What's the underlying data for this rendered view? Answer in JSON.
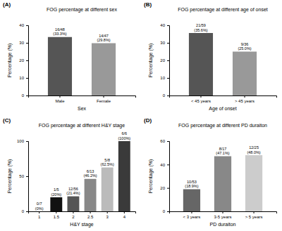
{
  "chart_data": [
    {
      "type": "bar",
      "panel": "(A)",
      "title": "FOG percentage at different sex",
      "x_label": "Sex",
      "y_label": "Percentage (%)",
      "categories": [
        "Male",
        "Female"
      ],
      "values": [
        33.3,
        29.8
      ],
      "counts": [
        "16/48",
        "14/47"
      ],
      "value_labels": [
        "(33.3%)",
        "(29.8%)"
      ],
      "colors": [
        "#555555",
        "#999999"
      ],
      "ylim": [
        0,
        40
      ],
      "yticks": [
        0,
        10,
        20,
        30,
        40
      ],
      "data_labels": true
    },
    {
      "type": "bar",
      "panel": "(B)",
      "title": "FOG percentage at different age of onset",
      "x_label": "Age of onset",
      "y_label": "Percentage (%)",
      "categories": [
        "< 45 years",
        "> 45 years"
      ],
      "values": [
        35.6,
        25.0
      ],
      "counts": [
        "21/59",
        "9/36"
      ],
      "value_labels": [
        "(35.6%)",
        "(25.0%)"
      ],
      "colors": [
        "#555555",
        "#999999"
      ],
      "ylim": [
        0,
        40
      ],
      "yticks": [
        0,
        10,
        20,
        30,
        40
      ],
      "data_labels": true
    },
    {
      "type": "bar",
      "panel": "(C)",
      "title": "FOG percentage at different H&Y stage",
      "x_label": "H&Y stage",
      "y_label": "Percentage (%)",
      "categories": [
        "1",
        "1.5",
        "2",
        "2.5",
        "3",
        "4"
      ],
      "values": [
        0,
        20,
        21.4,
        46.2,
        62.5,
        100
      ],
      "counts": [
        "0/7",
        "1/5",
        "12/56",
        "6/13",
        "5/8",
        "6/6"
      ],
      "value_labels": [
        "(0%)",
        "(20%)",
        "(21.4%)",
        "(46.2%)",
        "(62.5%)",
        "(100%)"
      ],
      "colors": [
        "#000000",
        "#111111",
        "#555555",
        "#888888",
        "#bbbbbb",
        "#3a3a3a"
      ],
      "ylim": [
        0,
        100
      ],
      "yticks": [
        0,
        50,
        100
      ],
      "data_labels": true
    },
    {
      "type": "bar",
      "panel": "(D)",
      "title": "FOG percentage at different PD duraiton",
      "x_label": "PD duraiton",
      "y_label": "Percentage (%)",
      "categories": [
        "< 3 years",
        "3-5 years",
        "> 5 years"
      ],
      "values": [
        18.9,
        47.1,
        48.0
      ],
      "counts": [
        "10/53",
        "8/17",
        "12/25"
      ],
      "value_labels": [
        "(18.9%)",
        "(47.1%)",
        "(48.0%)"
      ],
      "colors": [
        "#666666",
        "#888888",
        "#cccccc"
      ],
      "ylim": [
        0,
        60
      ],
      "yticks": [
        0,
        20,
        40,
        60
      ],
      "data_labels": true
    }
  ]
}
